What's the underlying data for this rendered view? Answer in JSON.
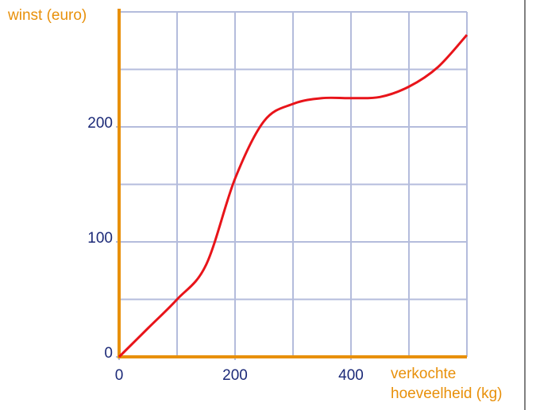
{
  "chart_data": {
    "type": "line",
    "ylabel": "winst (euro)",
    "xlabel": [
      "verkochte",
      "hoeveelheid (kg)"
    ],
    "x": [
      0,
      50,
      100,
      150,
      200,
      250,
      300,
      350,
      400,
      450,
      500,
      550,
      600
    ],
    "series": [
      {
        "name": "winst",
        "color": "#e8141a",
        "values": [
          0,
          25,
          50,
          80,
          155,
          205,
          220,
          225,
          225,
          226,
          235,
          252,
          280
        ]
      }
    ],
    "xlim": [
      0,
      600
    ],
    "ylim": [
      0,
      300
    ],
    "xticks": [
      0,
      200,
      400
    ],
    "yticks": [
      0,
      100,
      200
    ],
    "xgrid": [
      100,
      200,
      300,
      400,
      500,
      600
    ],
    "ygrid": [
      50,
      100,
      150,
      200,
      250,
      300
    ],
    "grid_color": "#b4bcdc",
    "axis_color": "#e8900a"
  }
}
